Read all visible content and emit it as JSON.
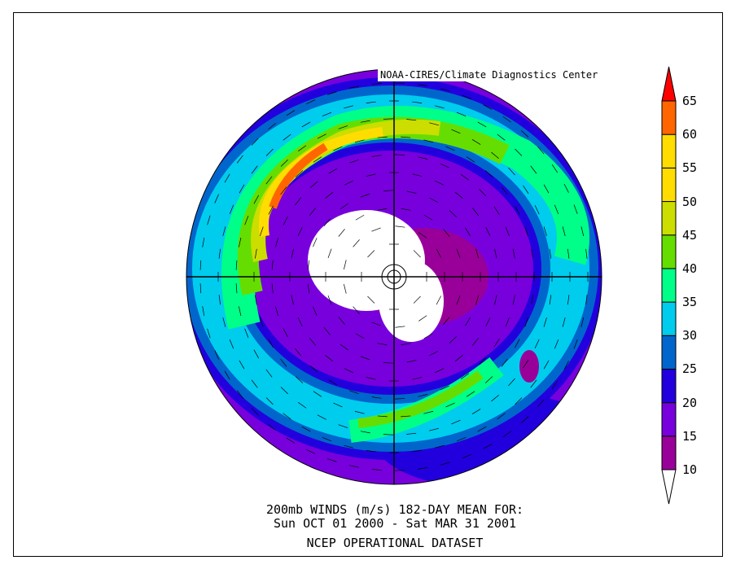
{
  "credit": "NOAA-CIRES/Climate Diagnostics Center",
  "caption": {
    "line1": "200mb WINDS (m/s)   182-DAY MEAN FOR:",
    "line2": "Sun OCT 01 2000 - Sat MAR 31 2001",
    "line3": "NCEP OPERATIONAL DATASET"
  },
  "colorbar": {
    "levels": [
      "10",
      "15",
      "20",
      "25",
      "30",
      "35",
      "40",
      "45",
      "50",
      "55",
      "60",
      "65"
    ],
    "colors": [
      "#990099",
      "#7700DD",
      "#2200DD",
      "#0066CC",
      "#00CCEE",
      "#00FF88",
      "#66DD00",
      "#CCDD00",
      "#FFDD00",
      "#FFDD00",
      "#FF6600"
    ],
    "below_color": "#FFFFFF",
    "above_color": "#FF0000"
  },
  "map": {
    "projection": "north-polar-stereographic",
    "variable": "200mb wind speed",
    "units": "m/s"
  }
}
